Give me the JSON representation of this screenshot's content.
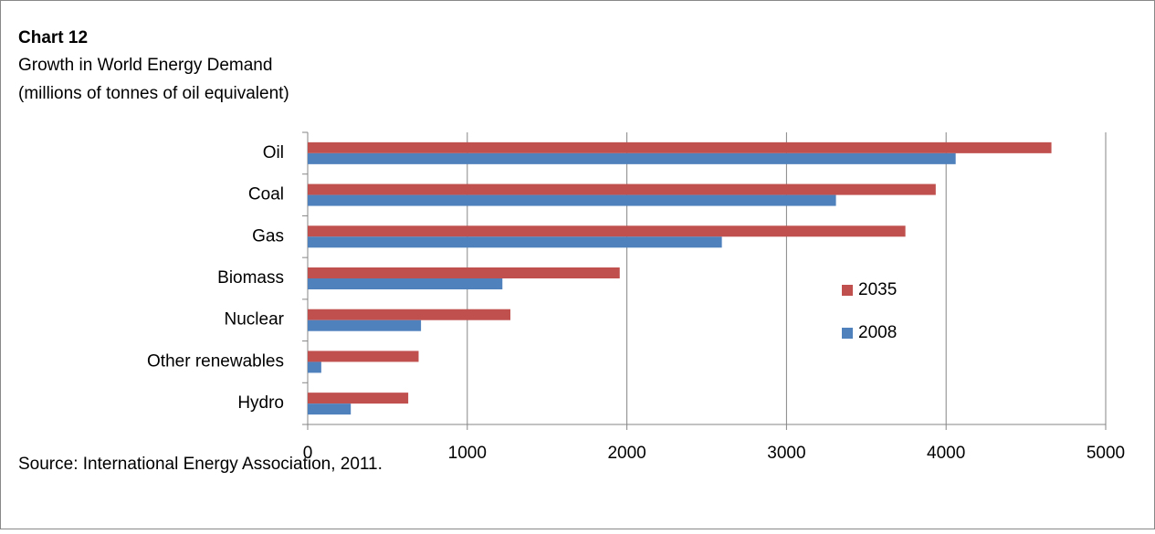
{
  "chart_data": {
    "type": "barh",
    "title": "Chart 12",
    "subtitle": "Growth in World Energy Demand",
    "subtitle2": "(millions of tonnes of oil equivalent)",
    "source": "Source: International Energy Association, 2011.",
    "categories": [
      "Oil",
      "Coal",
      "Gas",
      "Biomass",
      "Nuclear",
      "Other renewables",
      "Hydro"
    ],
    "series": [
      {
        "name": "2035",
        "color": "#c0504d",
        "values": [
          4660,
          3935,
          3745,
          1955,
          1270,
          695,
          630
        ]
      },
      {
        "name": "2008",
        "color": "#4f81bd",
        "values": [
          4060,
          3310,
          2595,
          1220,
          710,
          85,
          270
        ]
      }
    ],
    "xlim": [
      0,
      5000
    ],
    "xticks": [
      0,
      1000,
      2000,
      3000,
      4000,
      5000
    ],
    "grid": true
  }
}
